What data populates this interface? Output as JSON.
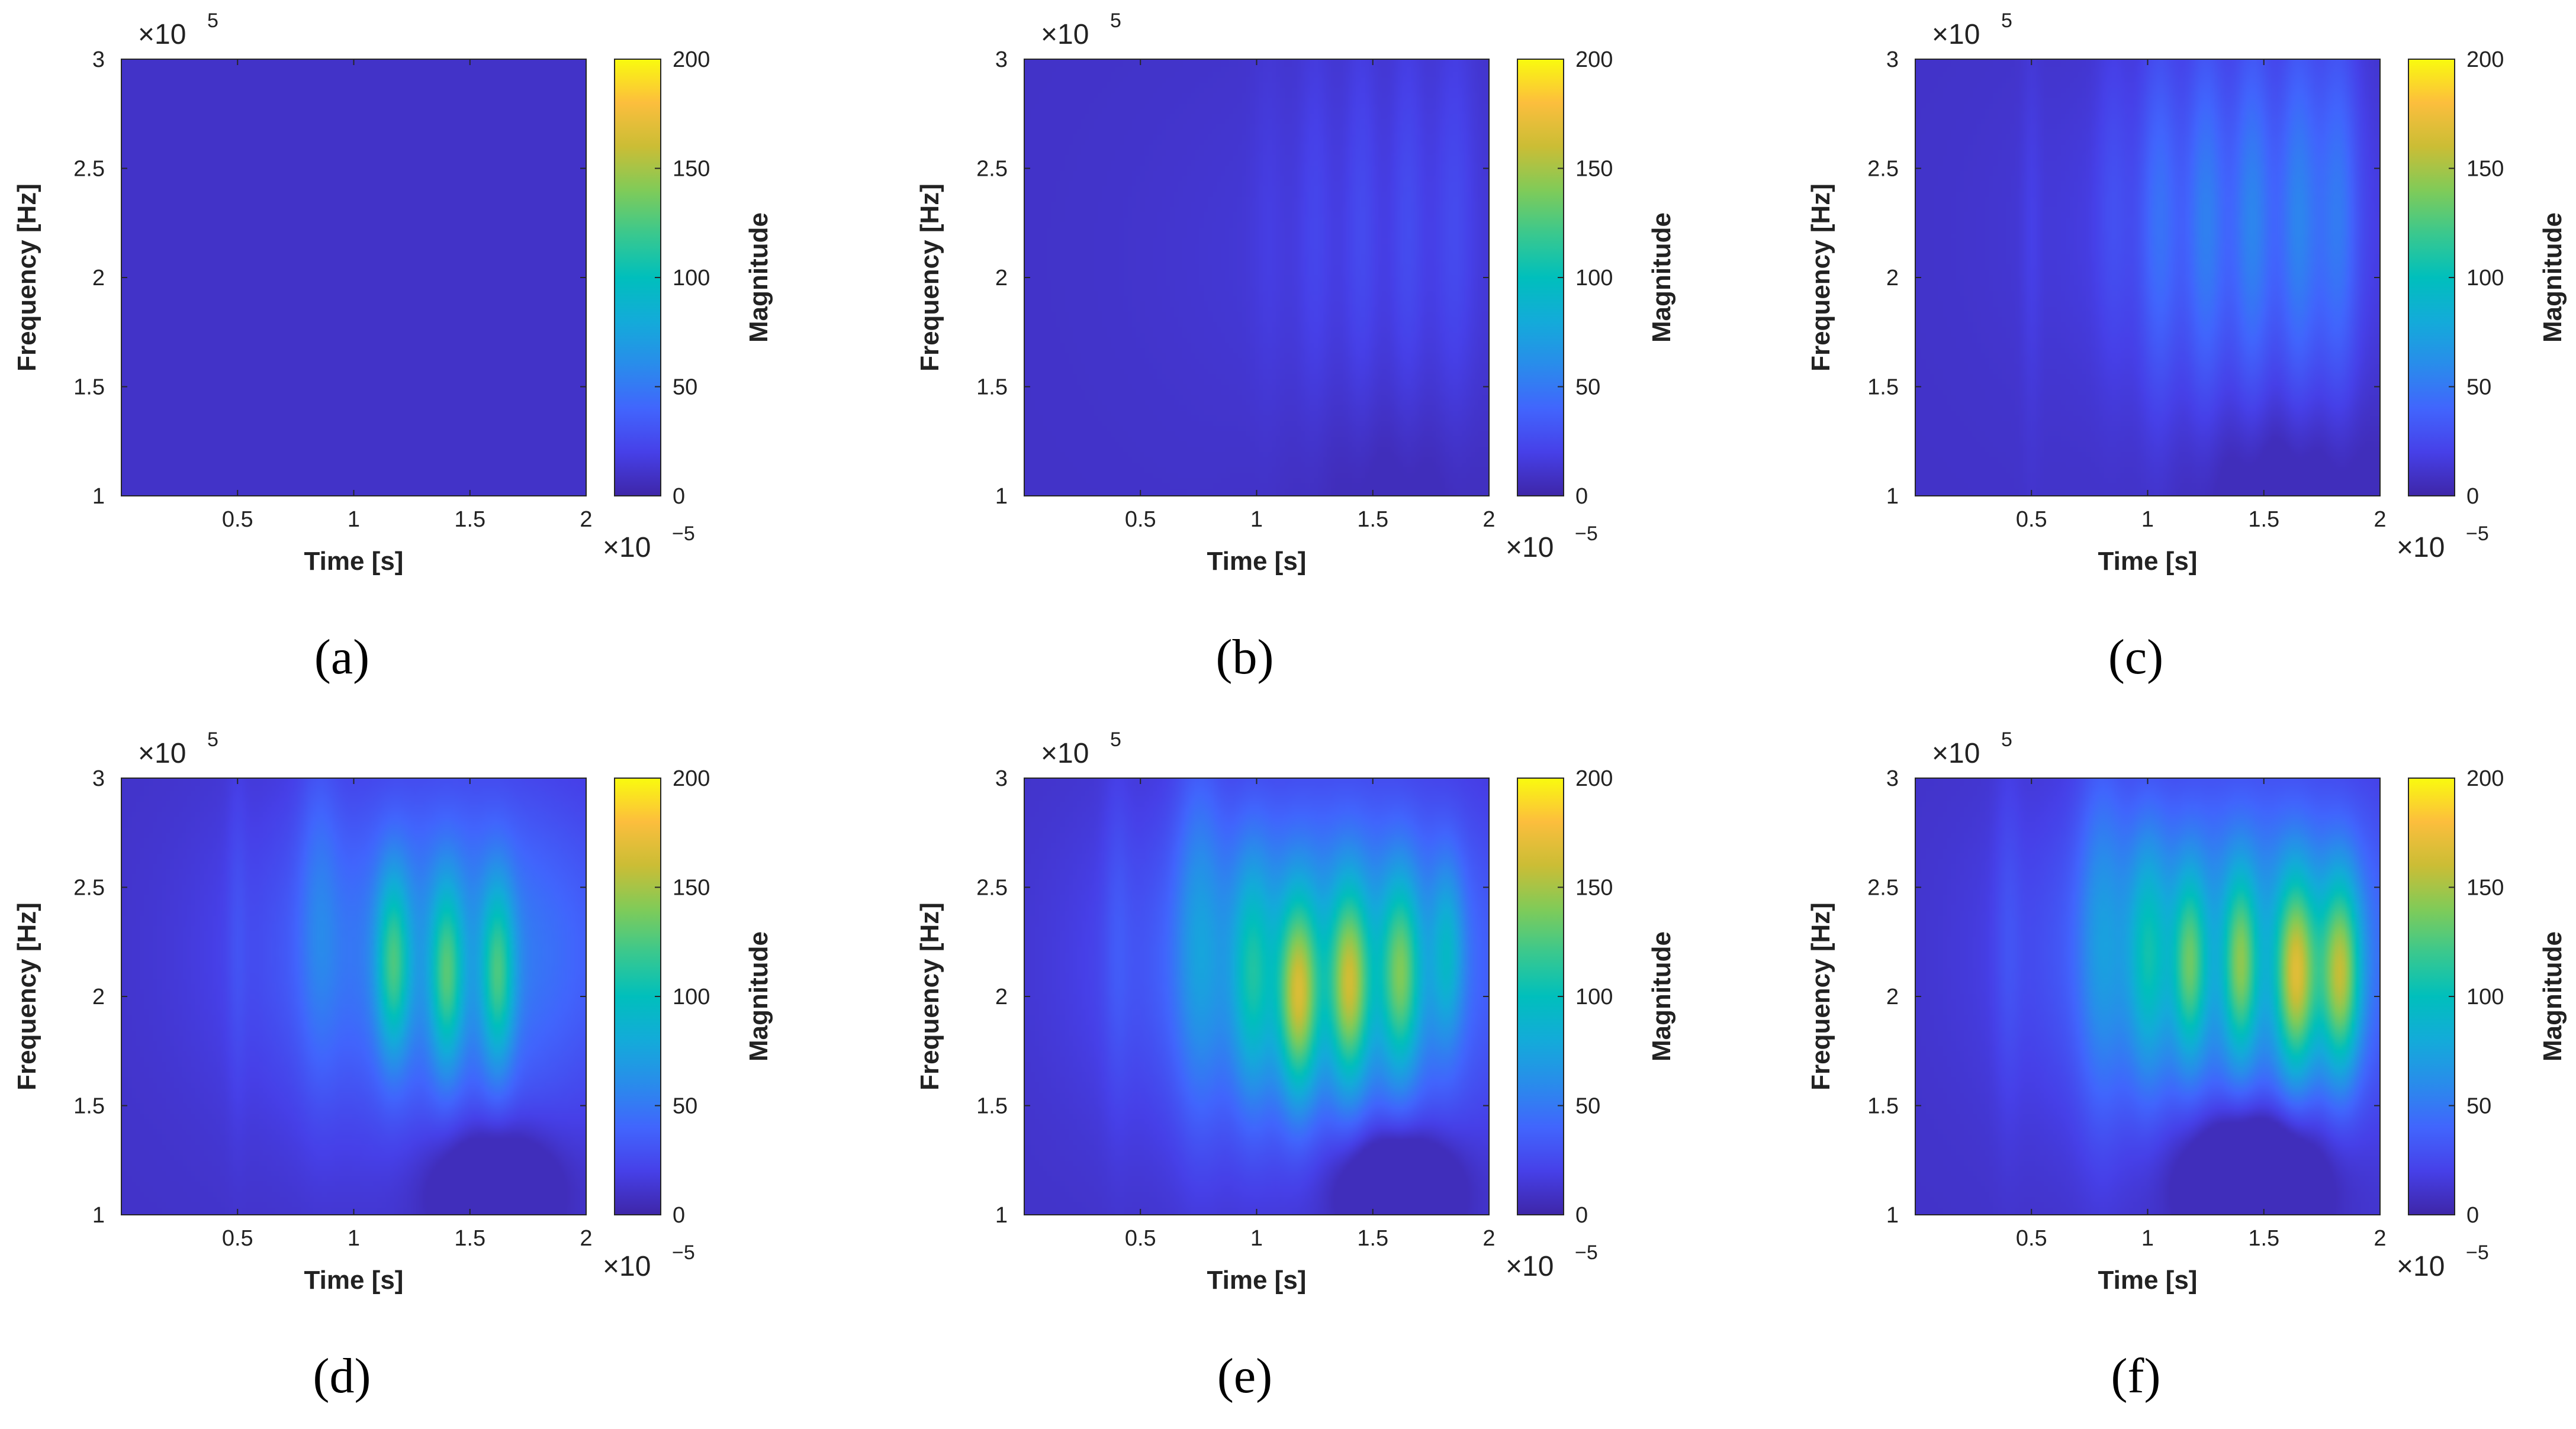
{
  "figure": {
    "panel_order": [
      "a",
      "b",
      "c",
      "d",
      "e",
      "f"
    ]
  },
  "chart_data": [
    {
      "type": "heatmap",
      "subcaption": "(a)",
      "xlabel": "Time [s]",
      "ylabel": "Frequency [Hz]",
      "x_multiplier": "×10",
      "x_multiplier_exp": "−5",
      "y_multiplier": "×10",
      "y_multiplier_exp": "5",
      "xlim": [
        0,
        2
      ],
      "ylim": [
        1,
        3
      ],
      "xticks": [
        0.5,
        1,
        1.5,
        2
      ],
      "xtick_labels": [
        "0.5",
        "1",
        "1.5",
        "2"
      ],
      "yticks": [
        1,
        1.5,
        2,
        2.5,
        3
      ],
      "ytick_labels": [
        "1",
        "1.5",
        "2",
        "2.5",
        "3"
      ],
      "colorbar": {
        "label": "Magnitude",
        "clim": [
          0,
          200
        ],
        "ticks": [
          0,
          50,
          100,
          150,
          200
        ],
        "tick_labels": [
          "0",
          "50",
          "100",
          "150",
          "200"
        ]
      },
      "background_level": 10,
      "blobs": [],
      "dips": []
    },
    {
      "type": "heatmap",
      "subcaption": "(b)",
      "xlabel": "Time [s]",
      "ylabel": "Frequency [Hz]",
      "x_multiplier": "×10",
      "x_multiplier_exp": "−5",
      "y_multiplier": "×10",
      "y_multiplier_exp": "5",
      "xlim": [
        0,
        2
      ],
      "ylim": [
        1,
        3
      ],
      "xticks": [
        0.5,
        1,
        1.5,
        2
      ],
      "xtick_labels": [
        "0.5",
        "1",
        "1.5",
        "2"
      ],
      "yticks": [
        1,
        1.5,
        2,
        2.5,
        3
      ],
      "ytick_labels": [
        "1",
        "1.5",
        "2",
        "2.5",
        "3"
      ],
      "colorbar": {
        "label": "Magnitude",
        "clim": [
          0,
          200
        ],
        "ticks": [
          0,
          50,
          100,
          150,
          200
        ],
        "tick_labels": [
          "0",
          "50",
          "100",
          "150",
          "200"
        ]
      },
      "background_level": 10,
      "blobs": [
        {
          "t": 1.05,
          "f": 2.3,
          "st": 0.05,
          "sf": 0.7,
          "mag": 4
        },
        {
          "t": 1.25,
          "f": 2.3,
          "st": 0.05,
          "sf": 0.7,
          "mag": 8
        },
        {
          "t": 1.45,
          "f": 2.3,
          "st": 0.05,
          "sf": 0.7,
          "mag": 10
        },
        {
          "t": 1.65,
          "f": 2.3,
          "st": 0.05,
          "sf": 0.7,
          "mag": 11
        },
        {
          "t": 1.85,
          "f": 2.3,
          "st": 0.06,
          "sf": 0.7,
          "mag": 11
        },
        {
          "t": 1.5,
          "f": 2.1,
          "st": 0.6,
          "sf": 0.6,
          "mag": 6
        }
      ],
      "dips": [
        {
          "t": 1.6,
          "f": 1.0,
          "st": 0.3,
          "sf": 0.35,
          "mag": 8
        }
      ]
    },
    {
      "type": "heatmap",
      "subcaption": "(c)",
      "xlabel": "Time [s]",
      "ylabel": "Frequency [Hz]",
      "x_multiplier": "×10",
      "x_multiplier_exp": "−5",
      "y_multiplier": "×10",
      "y_multiplier_exp": "5",
      "xlim": [
        0,
        2
      ],
      "ylim": [
        1,
        3
      ],
      "xticks": [
        0.5,
        1,
        1.5,
        2
      ],
      "xtick_labels": [
        "0.5",
        "1",
        "1.5",
        "2"
      ],
      "yticks": [
        1,
        1.5,
        2,
        2.5,
        3
      ],
      "ytick_labels": [
        "1",
        "1.5",
        "2",
        "2.5",
        "3"
      ],
      "colorbar": {
        "label": "Magnitude",
        "clim": [
          0,
          200
        ],
        "ticks": [
          0,
          50,
          100,
          150,
          200
        ],
        "tick_labels": [
          "0",
          "50",
          "100",
          "150",
          "200"
        ]
      },
      "background_level": 10,
      "blobs": [
        {
          "t": 0.85,
          "f": 2.4,
          "st": 0.05,
          "sf": 0.6,
          "mag": 10
        },
        {
          "t": 1.05,
          "f": 2.3,
          "st": 0.06,
          "sf": 0.65,
          "mag": 25
        },
        {
          "t": 1.25,
          "f": 2.3,
          "st": 0.06,
          "sf": 0.65,
          "mag": 30
        },
        {
          "t": 1.45,
          "f": 2.3,
          "st": 0.06,
          "sf": 0.65,
          "mag": 32
        },
        {
          "t": 1.65,
          "f": 2.3,
          "st": 0.06,
          "sf": 0.65,
          "mag": 33
        },
        {
          "t": 1.82,
          "f": 2.3,
          "st": 0.06,
          "sf": 0.65,
          "mag": 30
        },
        {
          "t": 1.4,
          "f": 2.2,
          "st": 0.55,
          "sf": 0.55,
          "mag": 15
        },
        {
          "t": 0.5,
          "f": 2.2,
          "st": 0.03,
          "sf": 0.7,
          "mag": 6
        }
      ],
      "dips": [
        {
          "t": 1.6,
          "f": 1.05,
          "st": 0.3,
          "sf": 0.3,
          "mag": 15
        }
      ]
    },
    {
      "type": "heatmap",
      "subcaption": "(d)",
      "xlabel": "Time [s]",
      "ylabel": "Frequency [Hz]",
      "x_multiplier": "×10",
      "x_multiplier_exp": "−5",
      "y_multiplier": "×10",
      "y_multiplier_exp": "5",
      "xlim": [
        0,
        2
      ],
      "ylim": [
        1,
        3
      ],
      "xticks": [
        0.5,
        1,
        1.5,
        2
      ],
      "xtick_labels": [
        "0.5",
        "1",
        "1.5",
        "2"
      ],
      "yticks": [
        1,
        1.5,
        2,
        2.5,
        3
      ],
      "ytick_labels": [
        "1",
        "1.5",
        "2",
        "2.5",
        "3"
      ],
      "colorbar": {
        "label": "Magnitude",
        "clim": [
          0,
          200
        ],
        "ticks": [
          0,
          50,
          100,
          150,
          200
        ],
        "tick_labels": [
          "0",
          "50",
          "100",
          "150",
          "200"
        ]
      },
      "background_level": 10,
      "blobs": [
        {
          "t": 0.85,
          "f": 2.4,
          "st": 0.06,
          "sf": 0.55,
          "mag": 20
        },
        {
          "t": 1.17,
          "f": 2.15,
          "st": 0.05,
          "sf": 0.3,
          "mag": 70
        },
        {
          "t": 1.4,
          "f": 2.1,
          "st": 0.05,
          "sf": 0.3,
          "mag": 70
        },
        {
          "t": 1.62,
          "f": 2.1,
          "st": 0.05,
          "sf": 0.3,
          "mag": 70
        },
        {
          "t": 1.4,
          "f": 2.2,
          "st": 0.55,
          "sf": 0.55,
          "mag": 50
        },
        {
          "t": 0.5,
          "f": 2.3,
          "st": 0.03,
          "sf": 0.6,
          "mag": 8
        }
      ],
      "dips": [
        {
          "t": 1.6,
          "f": 1.15,
          "st": 0.18,
          "sf": 0.18,
          "mag": 40
        }
      ]
    },
    {
      "type": "heatmap",
      "subcaption": "(e)",
      "xlabel": "Time [s]",
      "ylabel": "Frequency [Hz]",
      "x_multiplier": "×10",
      "x_multiplier_exp": "−5",
      "y_multiplier": "×10",
      "y_multiplier_exp": "5",
      "xlim": [
        0,
        2
      ],
      "ylim": [
        1,
        3
      ],
      "xticks": [
        0.5,
        1,
        1.5,
        2
      ],
      "xtick_labels": [
        "0.5",
        "1",
        "1.5",
        "2"
      ],
      "yticks": [
        1,
        1.5,
        2,
        2.5,
        3
      ],
      "ytick_labels": [
        "1",
        "1.5",
        "2",
        "2.5",
        "3"
      ],
      "colorbar": {
        "label": "Magnitude",
        "clim": [
          0,
          200
        ],
        "ticks": [
          0,
          50,
          100,
          150,
          200
        ],
        "tick_labels": [
          "0",
          "50",
          "100",
          "150",
          "200"
        ]
      },
      "background_level": 10,
      "blobs": [
        {
          "t": 0.75,
          "f": 2.3,
          "st": 0.07,
          "sf": 0.6,
          "mag": 30
        },
        {
          "t": 0.98,
          "f": 2.1,
          "st": 0.06,
          "sf": 0.4,
          "mag": 50
        },
        {
          "t": 1.18,
          "f": 2.0,
          "st": 0.06,
          "sf": 0.32,
          "mag": 100
        },
        {
          "t": 1.4,
          "f": 2.05,
          "st": 0.06,
          "sf": 0.32,
          "mag": 95
        },
        {
          "t": 1.62,
          "f": 2.1,
          "st": 0.06,
          "sf": 0.32,
          "mag": 80
        },
        {
          "t": 1.82,
          "f": 2.2,
          "st": 0.05,
          "sf": 0.3,
          "mag": 45
        },
        {
          "t": 1.3,
          "f": 2.15,
          "st": 0.55,
          "sf": 0.55,
          "mag": 60
        },
        {
          "t": 0.4,
          "f": 2.3,
          "st": 0.04,
          "sf": 0.6,
          "mag": 10
        }
      ],
      "dips": [
        {
          "t": 1.6,
          "f": 1.15,
          "st": 0.17,
          "sf": 0.17,
          "mag": 50
        }
      ]
    },
    {
      "type": "heatmap",
      "subcaption": "(f)",
      "xlabel": "Time [s]",
      "ylabel": "Frequency [Hz]",
      "x_multiplier": "×10",
      "x_multiplier_exp": "−5",
      "y_multiplier": "×10",
      "y_multiplier_exp": "5",
      "xlim": [
        0,
        2
      ],
      "ylim": [
        1,
        3
      ],
      "xticks": [
        0.5,
        1,
        1.5,
        2
      ],
      "xtick_labels": [
        "0.5",
        "1",
        "1.5",
        "2"
      ],
      "yticks": [
        1,
        1.5,
        2,
        2.5,
        3
      ],
      "ytick_labels": [
        "1",
        "1.5",
        "2",
        "2.5",
        "3"
      ],
      "colorbar": {
        "label": "Magnitude",
        "clim": [
          0,
          200
        ],
        "ticks": [
          0,
          50,
          100,
          150,
          200
        ],
        "tick_labels": [
          "0",
          "50",
          "100",
          "150",
          "200"
        ]
      },
      "background_level": 10,
      "blobs": [
        {
          "t": 0.8,
          "f": 2.3,
          "st": 0.07,
          "sf": 0.6,
          "mag": 30
        },
        {
          "t": 1.0,
          "f": 2.2,
          "st": 0.06,
          "sf": 0.4,
          "mag": 50
        },
        {
          "t": 1.18,
          "f": 2.15,
          "st": 0.05,
          "sf": 0.3,
          "mag": 70
        },
        {
          "t": 1.4,
          "f": 2.15,
          "st": 0.05,
          "sf": 0.3,
          "mag": 75
        },
        {
          "t": 1.64,
          "f": 2.1,
          "st": 0.06,
          "sf": 0.32,
          "mag": 105
        },
        {
          "t": 1.83,
          "f": 2.1,
          "st": 0.06,
          "sf": 0.32,
          "mag": 105
        },
        {
          "t": 1.4,
          "f": 2.2,
          "st": 0.55,
          "sf": 0.55,
          "mag": 60
        },
        {
          "t": 0.4,
          "f": 2.3,
          "st": 0.04,
          "sf": 0.6,
          "mag": 10
        }
      ],
      "dips": [
        {
          "t": 1.45,
          "f": 1.2,
          "st": 0.2,
          "sf": 0.2,
          "mag": 60
        }
      ]
    }
  ]
}
